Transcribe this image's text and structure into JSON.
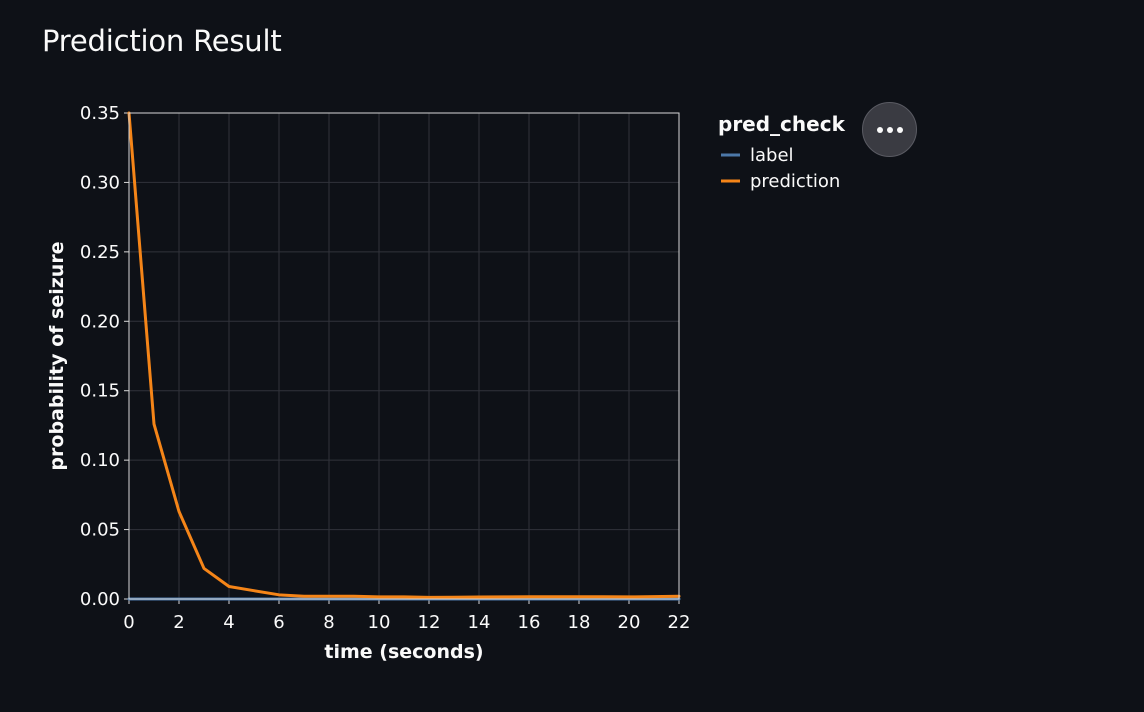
{
  "page": {
    "title": "Prediction Result"
  },
  "menu": {
    "icon": "more-horizontal-icon"
  },
  "chart_data": {
    "type": "line",
    "xlabel": "time (seconds)",
    "ylabel": "probability of seizure",
    "xlim": [
      0,
      22
    ],
    "ylim": [
      0,
      0.35
    ],
    "x_ticks": [
      0,
      2,
      4,
      6,
      8,
      10,
      12,
      14,
      16,
      18,
      20,
      22
    ],
    "y_ticks": [
      0,
      0.05,
      0.1,
      0.15,
      0.2,
      0.25,
      0.3,
      0.35
    ],
    "y_tick_labels": [
      "0.00",
      "0.05",
      "0.10",
      "0.15",
      "0.20",
      "0.25",
      "0.30",
      "0.35"
    ],
    "grid": true,
    "legend": {
      "title": "pred_check",
      "placement": "right"
    },
    "x": [
      0,
      1,
      2,
      3,
      4,
      5,
      6,
      7,
      8,
      9,
      10,
      11,
      12,
      13,
      14,
      15,
      16,
      17,
      18,
      19,
      20,
      21,
      22
    ],
    "series": [
      {
        "name": "label",
        "color": "#4c78a8",
        "values": [
          0,
          0,
          0,
          0,
          0,
          0,
          0,
          0,
          0,
          0,
          0,
          0,
          0,
          0,
          0,
          0,
          0,
          0,
          0,
          0,
          0,
          0,
          0
        ]
      },
      {
        "name": "prediction",
        "color": "#f58518",
        "values": [
          0.35,
          0.126,
          0.063,
          0.022,
          0.009,
          0.006,
          0.003,
          0.002,
          0.002,
          0.002,
          0.0015,
          0.0015,
          0.0012,
          0.0013,
          0.0014,
          0.0015,
          0.0016,
          0.0016,
          0.0016,
          0.0016,
          0.0015,
          0.0017,
          0.002
        ]
      }
    ]
  }
}
